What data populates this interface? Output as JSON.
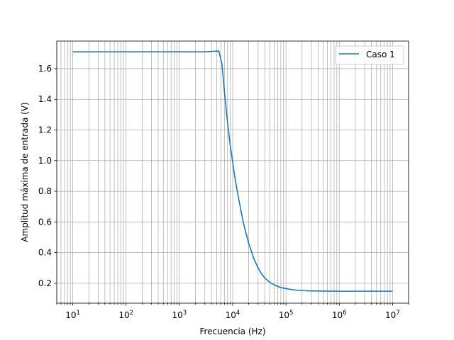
{
  "chart_data": {
    "type": "line",
    "title": "",
    "xlabel": "Frecuencia (Hz)",
    "ylabel": "Amplitud máxima de entrada (V)",
    "xscale": "log",
    "xlim": [
      5,
      20000000
    ],
    "ylim": [
      0.07,
      1.78
    ],
    "grid": true,
    "grid_minor_x": true,
    "legend_position": "top-right",
    "x_tick_base": "10",
    "x_tick_exponents": [
      "1",
      "2",
      "3",
      "4",
      "5",
      "6",
      "7"
    ],
    "y_ticks": [
      "0.2",
      "0.4",
      "0.6",
      "0.8",
      "1.0",
      "1.2",
      "1.4",
      "1.6"
    ],
    "line_color": "#1f77b4",
    "grid_color": "#b0b0b0",
    "series": [
      {
        "name": "Caso 1",
        "x": [
          10,
          100,
          1000,
          3000,
          5500,
          6300,
          7000,
          8000,
          9000,
          10000,
          11000,
          12500,
          14000,
          16000,
          18000,
          20000,
          25000,
          30000,
          35000,
          40000,
          50000,
          60000,
          70000,
          80000,
          100000,
          130000,
          160000,
          200000,
          300000,
          500000,
          1000000,
          3000000,
          10000000
        ],
        "y": [
          1.71,
          1.71,
          1.71,
          1.71,
          1.715,
          1.63,
          1.45,
          1.25,
          1.1,
          0.99,
          0.89,
          0.78,
          0.69,
          0.59,
          0.52,
          0.46,
          0.36,
          0.3,
          0.26,
          0.235,
          0.205,
          0.19,
          0.18,
          0.172,
          0.165,
          0.158,
          0.155,
          0.152,
          0.15,
          0.149,
          0.148,
          0.148,
          0.148
        ]
      }
    ]
  }
}
